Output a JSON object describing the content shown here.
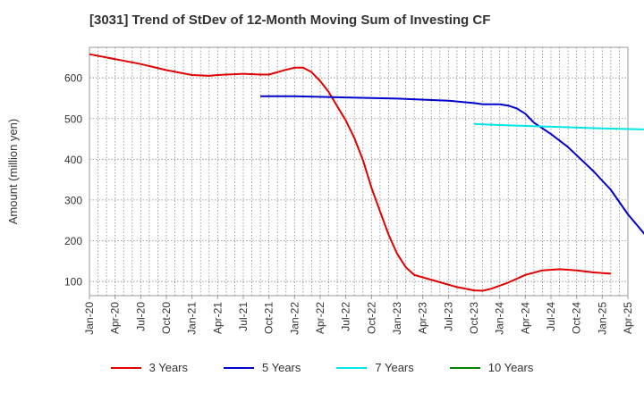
{
  "chart_data": {
    "type": "line",
    "title": "[3031]  Trend of StDev of 12-Month Moving Sum of Investing CF",
    "xlabel": "",
    "ylabel": "Amount (million yen)",
    "ylim": [
      65,
      675
    ],
    "yticks": [
      100,
      200,
      300,
      400,
      500,
      600
    ],
    "xticks": [
      "Jan-20",
      "Apr-20",
      "Jul-20",
      "Oct-20",
      "Jan-21",
      "Apr-21",
      "Jul-21",
      "Oct-21",
      "Jan-22",
      "Apr-22",
      "Jul-22",
      "Oct-22",
      "Jan-23",
      "Apr-23",
      "Jul-23",
      "Oct-23",
      "Jan-24",
      "Apr-24",
      "Jul-24",
      "Oct-24",
      "Jan-25",
      "Apr-25"
    ],
    "grid": true,
    "legend_position": "bottom",
    "series": [
      {
        "name": "3 Years",
        "color": "#e00000",
        "points": [
          [
            "Jan-20",
            658
          ],
          [
            "Apr-20",
            646
          ],
          [
            "Jul-20",
            634
          ],
          [
            "Oct-20",
            619
          ],
          [
            "Jan-21",
            607
          ],
          [
            "Mar-21",
            605
          ],
          [
            "Apr-21",
            607
          ],
          [
            "Jul-21",
            610
          ],
          [
            "Sep-21",
            608
          ],
          [
            "Oct-21",
            608
          ],
          [
            "Dec-21",
            620
          ],
          [
            "Jan-22",
            625
          ],
          [
            "Feb-22",
            625
          ],
          [
            "Mar-22",
            614
          ],
          [
            "Apr-22",
            592
          ],
          [
            "May-22",
            565
          ],
          [
            "Jun-22",
            530
          ],
          [
            "Jul-22",
            495
          ],
          [
            "Aug-22",
            452
          ],
          [
            "Sep-22",
            398
          ],
          [
            "Oct-22",
            330
          ],
          [
            "Nov-22",
            272
          ],
          [
            "Dec-22",
            215
          ],
          [
            "Jan-23",
            168
          ],
          [
            "Feb-23",
            135
          ],
          [
            "Mar-23",
            116
          ],
          [
            "Apr-23",
            110
          ],
          [
            "Jun-23",
            98
          ],
          [
            "Aug-23",
            86
          ],
          [
            "Oct-23",
            78
          ],
          [
            "Nov-23",
            77
          ],
          [
            "Dec-23",
            82
          ],
          [
            "Feb-24",
            97
          ],
          [
            "Apr-24",
            116
          ],
          [
            "Jun-24",
            127
          ],
          [
            "Aug-24",
            130
          ],
          [
            "Oct-24",
            127
          ],
          [
            "Dec-24",
            122
          ],
          [
            "Feb-25",
            119
          ]
        ]
      },
      {
        "name": "5 Years",
        "color": "#0000cc",
        "points": [
          [
            "Sep-21",
            555
          ],
          [
            "Jan-22",
            555
          ],
          [
            "Jul-22",
            552
          ],
          [
            "Jan-23",
            549
          ],
          [
            "Jul-23",
            544
          ],
          [
            "Oct-23",
            538
          ],
          [
            "Nov-23",
            535
          ],
          [
            "Jan-24",
            535
          ],
          [
            "Feb-24",
            532
          ],
          [
            "Mar-24",
            525
          ],
          [
            "Apr-24",
            512
          ],
          [
            "May-24",
            490
          ],
          [
            "Jul-24",
            462
          ],
          [
            "Sep-24",
            430
          ],
          [
            "Oct-24",
            410
          ],
          [
            "Dec-24",
            370
          ],
          [
            "Feb-25",
            325
          ],
          [
            "Apr-25",
            265
          ],
          [
            "Jun-25",
            215
          ],
          [
            "Aug-25",
            182
          ],
          [
            "Sep-25",
            160
          ]
        ]
      },
      {
        "name": "7 Years",
        "color": "#00e5e5",
        "points": [
          [
            "Oct-23",
            487
          ],
          [
            "Jan-24",
            484
          ],
          [
            "Jul-24",
            480
          ],
          [
            "Jan-25",
            476
          ],
          [
            "Jul-25",
            473
          ],
          [
            "Sep-25",
            471
          ]
        ]
      },
      {
        "name": "10 Years",
        "color": "#008000",
        "points": []
      }
    ]
  }
}
